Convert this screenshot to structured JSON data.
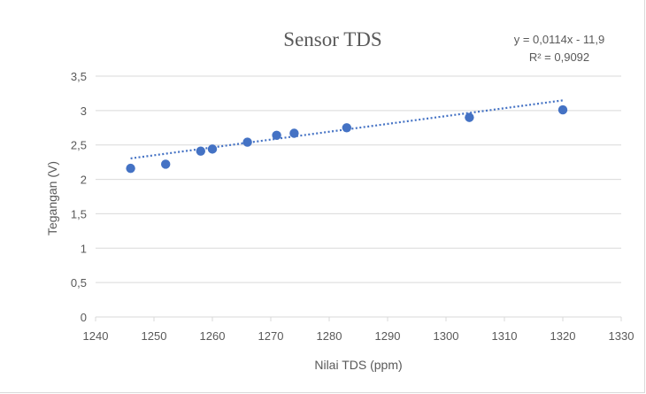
{
  "chart_data": {
    "type": "scatter",
    "title": "Sensor TDS",
    "xlabel": "Nilai TDS (ppm)",
    "ylabel": "Tegangan (V)",
    "xlim": [
      1240,
      1330
    ],
    "ylim": [
      0,
      3.5
    ],
    "x_ticks": [
      1240,
      1250,
      1260,
      1270,
      1280,
      1290,
      1300,
      1310,
      1320,
      1330
    ],
    "x_tick_labels": [
      "1240",
      "1250",
      "1260",
      "1270",
      "1280",
      "1290",
      "1300",
      "1310",
      "1320",
      "1330"
    ],
    "y_ticks": [
      0,
      0.5,
      1,
      1.5,
      2,
      2.5,
      3,
      3.5
    ],
    "y_tick_labels": [
      "0",
      "0,5",
      "1",
      "1,5",
      "2",
      "2,5",
      "3",
      "3,5"
    ],
    "grid": "horizontal",
    "points": [
      {
        "x": 1246,
        "y": 2.16
      },
      {
        "x": 1252,
        "y": 2.22
      },
      {
        "x": 1258,
        "y": 2.41
      },
      {
        "x": 1260,
        "y": 2.44
      },
      {
        "x": 1266,
        "y": 2.54
      },
      {
        "x": 1271,
        "y": 2.64
      },
      {
        "x": 1274,
        "y": 2.67
      },
      {
        "x": 1283,
        "y": 2.75
      },
      {
        "x": 1304,
        "y": 2.9
      },
      {
        "x": 1320,
        "y": 3.01
      }
    ],
    "trendline": {
      "type": "linear",
      "slope": 0.0114,
      "intercept": -11.9,
      "x_range": [
        1246,
        1320
      ],
      "equation": "y = 0,0114x - 11,9",
      "r_squared": "R² = 0,9092"
    },
    "colors": {
      "marker": "#4472c4",
      "trendline": "#4472c4",
      "grid": "#d9d9d9",
      "text": "#595959"
    }
  }
}
